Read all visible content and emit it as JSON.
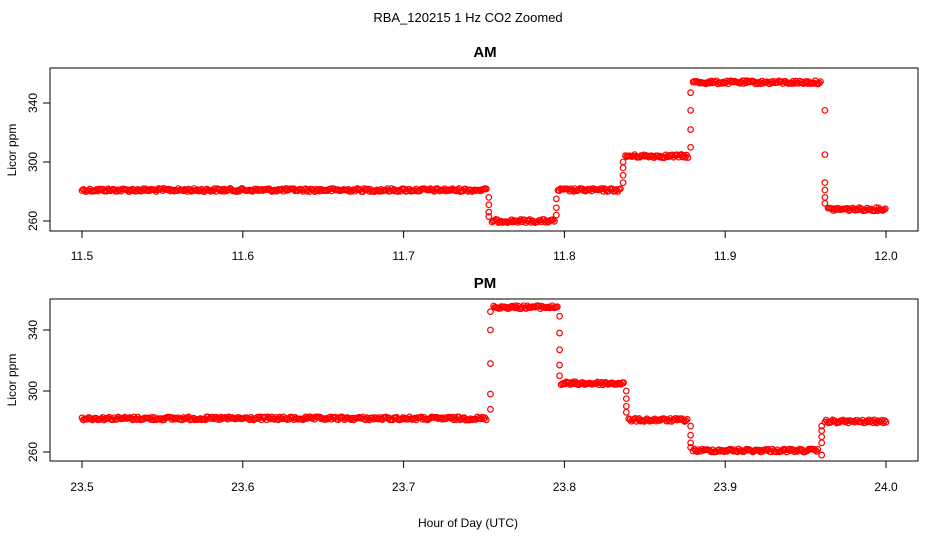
{
  "figure": {
    "title": "RBA_120215  1 Hz CO2 Zoomed",
    "xlabel": "Hour of Day (UTC)"
  },
  "chart_data": [
    {
      "type": "scatter",
      "title": "AM",
      "ylabel": "Licor ppm",
      "xlim": [
        11.5,
        12.0
      ],
      "ylim": [
        255,
        362
      ],
      "xticks": [
        "11.5",
        "11.6",
        "11.7",
        "11.8",
        "11.9",
        "12.0"
      ],
      "xtick_values": [
        11.5,
        11.6,
        11.7,
        11.8,
        11.9,
        12.0
      ],
      "yticks": [
        "260",
        "300",
        "340"
      ],
      "ytick_values": [
        260,
        300,
        340
      ],
      "grid": false,
      "marker_color": "#ff0000",
      "series": [
        {
          "segments": [
            {
              "x0": 11.5,
              "x1": 11.752,
              "y": 281
            },
            {
              "x0": 11.755,
              "x1": 11.794,
              "y": 260
            },
            {
              "x0": 11.796,
              "x1": 11.835,
              "y": 281
            },
            {
              "x0": 11.838,
              "x1": 11.877,
              "y": 304
            },
            {
              "x0": 11.88,
              "x1": 11.96,
              "y": 354
            },
            {
              "x0": 11.964,
              "x1": 12.0,
              "y": 268
            }
          ],
          "transitions": [
            {
              "x": 11.753,
              "y": [
                276,
                271,
                266,
                263
              ]
            },
            {
              "x": 11.795,
              "y": [
                264,
                269,
                275
              ]
            },
            {
              "x": 11.8365,
              "y": [
                286,
                291,
                296,
                300
              ]
            },
            {
              "x": 11.8785,
              "y": [
                310,
                322,
                335,
                347
              ]
            },
            {
              "x": 11.962,
              "y": [
                335,
                305,
                286,
                281,
                276,
                272
              ]
            }
          ]
        }
      ]
    },
    {
      "type": "scatter",
      "title": "PM",
      "ylabel": "Licor ppm",
      "xlim": [
        23.5,
        24.0
      ],
      "ylim": [
        255,
        362
      ],
      "xticks": [
        "23.5",
        "23.6",
        "23.7",
        "23.8",
        "23.9",
        "24.0"
      ],
      "xtick_values": [
        23.5,
        23.6,
        23.7,
        23.8,
        23.9,
        24.0
      ],
      "yticks": [
        "260",
        "300",
        "340"
      ],
      "ytick_values": [
        260,
        300,
        340
      ],
      "grid": false,
      "marker_color": "#ff0000",
      "series": [
        {
          "segments": [
            {
              "x0": 23.5,
              "x1": 23.752,
              "y": 282
            },
            {
              "x0": 23.756,
              "x1": 23.796,
              "y": 355
            },
            {
              "x0": 23.798,
              "x1": 23.837,
              "y": 305
            },
            {
              "x0": 23.84,
              "x1": 23.877,
              "y": 281
            },
            {
              "x0": 23.88,
              "x1": 23.958,
              "y": 261
            },
            {
              "x0": 23.962,
              "x1": 24.0,
              "y": 280
            }
          ],
          "transitions": [
            {
              "x": 23.754,
              "y": [
                288,
                298,
                318,
                340,
                352
              ]
            },
            {
              "x": 23.797,
              "y": [
                349,
                338,
                327,
                317,
                310
              ]
            },
            {
              "x": 23.8385,
              "y": [
                300,
                295,
                290,
                286
              ]
            },
            {
              "x": 23.8785,
              "y": [
                277,
                271,
                266,
                263
              ]
            },
            {
              "x": 23.96,
              "y": [
                258,
                266,
                270,
                274,
                277
              ]
            }
          ]
        }
      ]
    }
  ]
}
